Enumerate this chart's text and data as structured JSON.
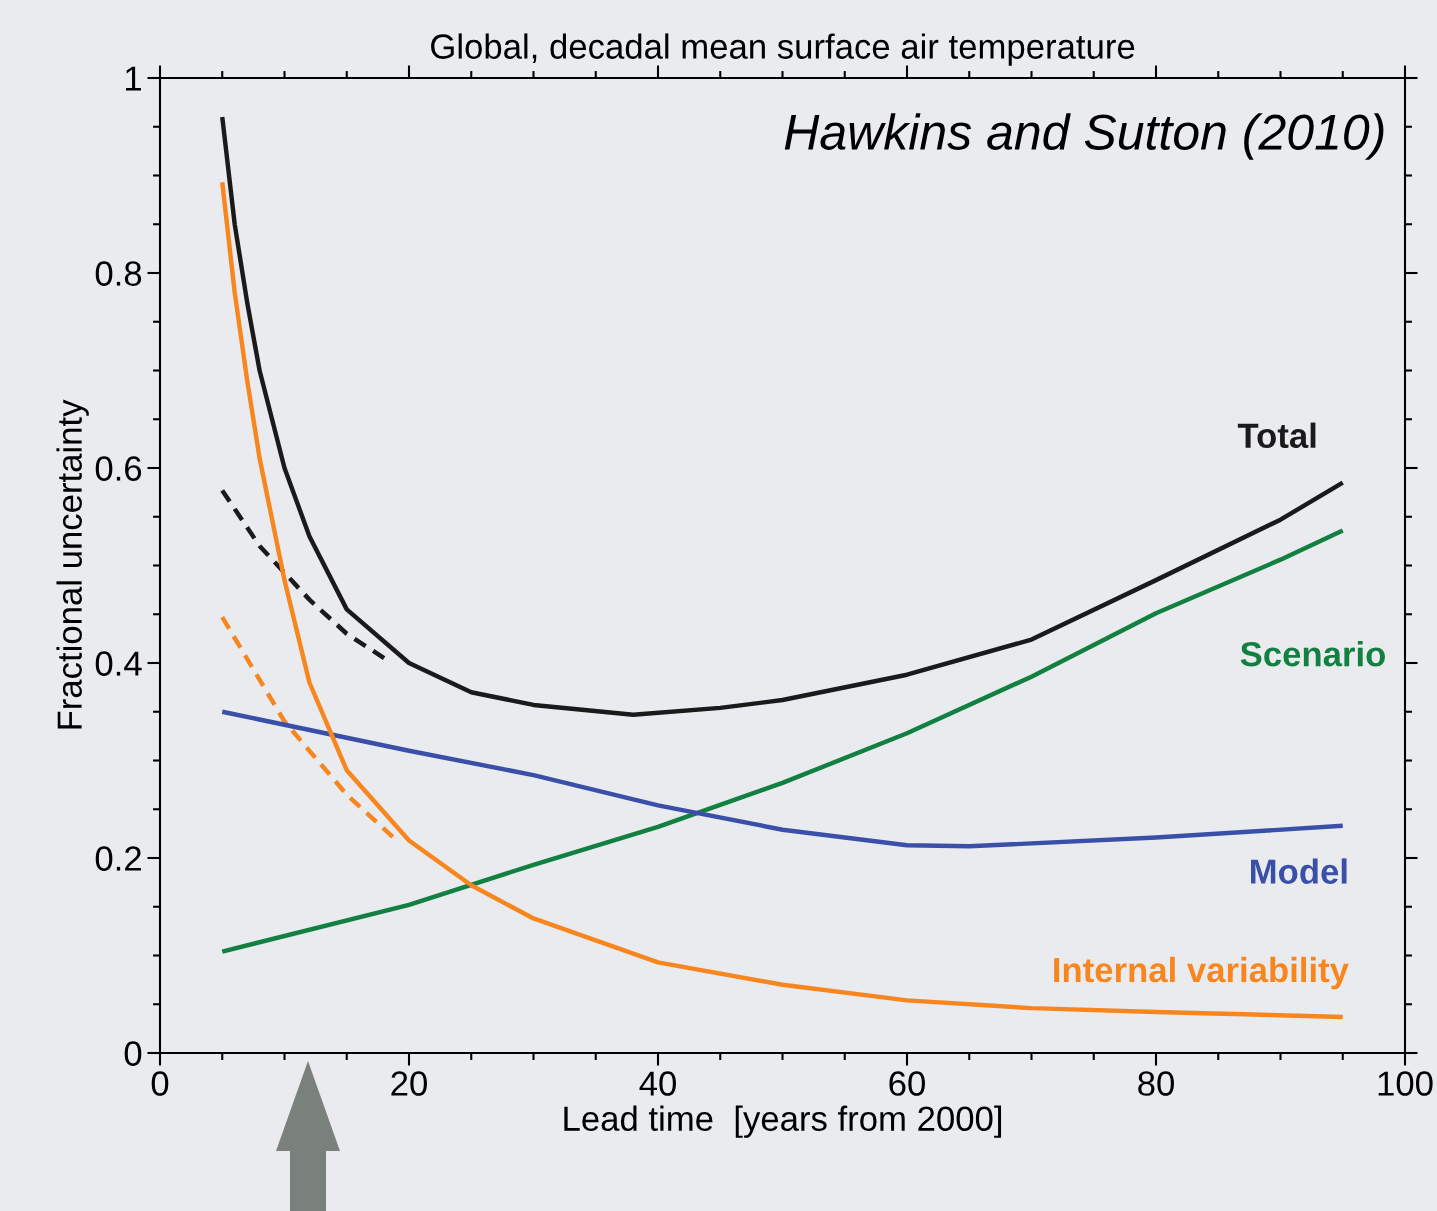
{
  "chart_data": {
    "type": "line",
    "title": "Global, decadal mean surface air temperature",
    "xlabel": "Lead time  [years from 2000]",
    "ylabel": "Fractional uncertainty",
    "annotations": [
      "Hawkins and Sutton (2010)"
    ],
    "xlim": [
      0,
      100
    ],
    "xticks": [
      0,
      20,
      40,
      60,
      80,
      100
    ],
    "ylim": [
      0,
      1
    ],
    "yticks": [
      0,
      0.2,
      0.4,
      0.6,
      0.8,
      1
    ],
    "grid": false,
    "legend": false,
    "series": [
      {
        "name": "Total",
        "color": "#1a1a1a",
        "line_style": "solid",
        "x": [
          5,
          6,
          7,
          8,
          10,
          12,
          15,
          20,
          25,
          30,
          38,
          45,
          50,
          60,
          70,
          80,
          90,
          95
        ],
        "values": [
          0.96,
          0.85,
          0.77,
          0.7,
          0.6,
          0.53,
          0.455,
          0.4,
          0.37,
          0.357,
          0.347,
          0.354,
          0.362,
          0.388,
          0.424,
          0.485,
          0.547,
          0.585
        ]
      },
      {
        "color": "#1a1a1a",
        "line_style": "dashed",
        "x": [
          5,
          8,
          12,
          15,
          18
        ],
        "values": [
          0.577,
          0.52,
          0.465,
          0.43,
          0.405
        ]
      },
      {
        "name": "Scenario",
        "color": "#118040",
        "line_style": "solid",
        "x": [
          5,
          20,
          30,
          40,
          50,
          60,
          70,
          80,
          90,
          95
        ],
        "values": [
          0.104,
          0.152,
          0.193,
          0.232,
          0.277,
          0.328,
          0.386,
          0.451,
          0.506,
          0.536
        ]
      },
      {
        "name": "Model",
        "color": "#3a50a8",
        "line_style": "solid",
        "x": [
          5,
          20,
          30,
          40,
          50,
          60,
          65,
          80,
          95
        ],
        "values": [
          0.35,
          0.31,
          0.285,
          0.254,
          0.229,
          0.213,
          0.212,
          0.221,
          0.233
        ]
      },
      {
        "name": "Internal variability",
        "color": "#f7861f",
        "line_style": "solid",
        "x": [
          5,
          6,
          7,
          8,
          10,
          12,
          15,
          20,
          25,
          30,
          40,
          50,
          60,
          70,
          80,
          95
        ],
        "values": [
          0.893,
          0.78,
          0.69,
          0.61,
          0.485,
          0.38,
          0.29,
          0.218,
          0.172,
          0.138,
          0.093,
          0.07,
          0.054,
          0.046,
          0.042,
          0.037
        ]
      },
      {
        "color": "#f7861f",
        "line_style": "dashed",
        "x": [
          5,
          10,
          15,
          19
        ],
        "values": [
          0.447,
          0.34,
          0.265,
          0.218
        ]
      }
    ]
  }
}
